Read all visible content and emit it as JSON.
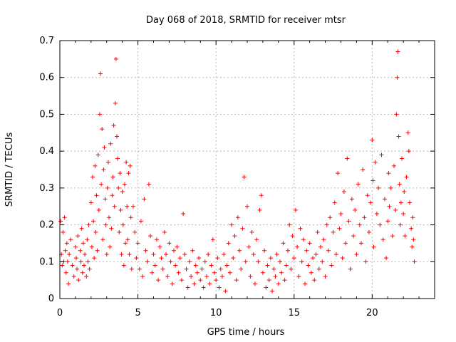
{
  "chart_data": {
    "type": "scatter",
    "title": "Day 068 of 2018, SRMTID for receiver mtsr",
    "xlabel": "GPS time / hours",
    "ylabel": "SRMTID / TECUs",
    "xlim": [
      0,
      24
    ],
    "ylim": [
      0,
      0.7
    ],
    "xticks": [
      0,
      5,
      10,
      15,
      20
    ],
    "yticks": [
      0,
      0.1,
      0.2,
      0.3,
      0.4,
      0.5,
      0.6,
      0.7
    ],
    "xtick_labels": [
      "0",
      "5",
      "10",
      "15",
      "20"
    ],
    "ytick_labels": [
      "0",
      "0.1",
      "0.2",
      "0.3",
      "0.4",
      "0.5",
      "0.6",
      "0.7"
    ],
    "grid": true,
    "marker": "+",
    "series": [
      {
        "name": "SRMTID",
        "color": "#ff0000",
        "points": [
          [
            0.05,
            0.21
          ],
          [
            0.1,
            0.12
          ],
          [
            0.15,
            0.09
          ],
          [
            0.2,
            0.18
          ],
          [
            0.25,
            0.1
          ],
          [
            0.3,
            0.22
          ],
          [
            0.35,
            0.13
          ],
          [
            0.4,
            0.07
          ],
          [
            0.45,
            0.15
          ],
          [
            0.5,
            0.1
          ],
          [
            0.55,
            0.04
          ],
          [
            0.6,
            0.12
          ],
          [
            0.7,
            0.16
          ],
          [
            0.8,
            0.09
          ],
          [
            0.9,
            0.06
          ],
          [
            1.0,
            0.14
          ],
          [
            1.05,
            0.11
          ],
          [
            1.1,
            0.08
          ],
          [
            1.15,
            0.17
          ],
          [
            1.2,
            0.05
          ],
          [
            1.3,
            0.13
          ],
          [
            1.35,
            0.1
          ],
          [
            1.4,
            0.19
          ],
          [
            1.45,
            0.07
          ],
          [
            1.5,
            0.15
          ],
          [
            1.55,
            0.09
          ],
          [
            1.6,
            0.12
          ],
          [
            1.7,
            0.06
          ],
          [
            1.75,
            0.16
          ],
          [
            1.8,
            0.1
          ],
          [
            1.85,
            0.2
          ],
          [
            1.9,
            0.08
          ],
          [
            2.0,
            0.26
          ],
          [
            2.05,
            0.14
          ],
          [
            2.1,
            0.33
          ],
          [
            2.15,
            0.21
          ],
          [
            2.2,
            0.11
          ],
          [
            2.25,
            0.36
          ],
          [
            2.3,
            0.18
          ],
          [
            2.35,
            0.28
          ],
          [
            2.4,
            0.13
          ],
          [
            2.45,
            0.39
          ],
          [
            2.5,
            0.24
          ],
          [
            2.55,
            0.5
          ],
          [
            2.6,
            0.61
          ],
          [
            2.65,
            0.31
          ],
          [
            2.7,
            0.46
          ],
          [
            2.75,
            0.16
          ],
          [
            2.8,
            0.35
          ],
          [
            2.85,
            0.41
          ],
          [
            2.9,
            0.27
          ],
          [
            2.95,
            0.2
          ],
          [
            3.0,
            0.12
          ],
          [
            3.05,
            0.3
          ],
          [
            3.1,
            0.37
          ],
          [
            3.15,
            0.22
          ],
          [
            3.2,
            0.14
          ],
          [
            3.25,
            0.42
          ],
          [
            3.3,
            0.19
          ],
          [
            3.35,
            0.28
          ],
          [
            3.4,
            0.33
          ],
          [
            3.45,
            0.47
          ],
          [
            3.5,
            0.25
          ],
          [
            3.55,
            0.53
          ],
          [
            3.6,
            0.65
          ],
          [
            3.65,
            0.44
          ],
          [
            3.7,
            0.38
          ],
          [
            3.75,
            0.3
          ],
          [
            3.8,
            0.18
          ],
          [
            3.85,
            0.34
          ],
          [
            3.9,
            0.24
          ],
          [
            3.95,
            0.12
          ],
          [
            4.0,
            0.29
          ],
          [
            4.05,
            0.2
          ],
          [
            4.1,
            0.09
          ],
          [
            4.15,
            0.31
          ],
          [
            4.2,
            0.15
          ],
          [
            4.25,
            0.37
          ],
          [
            4.3,
            0.25
          ],
          [
            4.35,
            0.16
          ],
          [
            4.4,
            0.34
          ],
          [
            4.45,
            0.12
          ],
          [
            4.5,
            0.36
          ],
          [
            4.55,
            0.22
          ],
          [
            4.6,
            0.08
          ],
          [
            4.7,
            0.25
          ],
          [
            4.8,
            0.18
          ],
          [
            4.9,
            0.11
          ],
          [
            5.0,
            0.15
          ],
          [
            5.1,
            0.08
          ],
          [
            5.2,
            0.21
          ],
          [
            5.3,
            0.06
          ],
          [
            5.4,
            0.27
          ],
          [
            5.5,
            0.13
          ],
          [
            5.6,
            0.1
          ],
          [
            5.7,
            0.31
          ],
          [
            5.8,
            0.17
          ],
          [
            5.9,
            0.07
          ],
          [
            6.0,
            0.12
          ],
          [
            6.1,
            0.09
          ],
          [
            6.2,
            0.16
          ],
          [
            6.3,
            0.05
          ],
          [
            6.4,
            0.14
          ],
          [
            6.5,
            0.11
          ],
          [
            6.6,
            0.08
          ],
          [
            6.7,
            0.18
          ],
          [
            6.8,
            0.12
          ],
          [
            6.9,
            0.06
          ],
          [
            7.0,
            0.15
          ],
          [
            7.1,
            0.1
          ],
          [
            7.2,
            0.04
          ],
          [
            7.3,
            0.13
          ],
          [
            7.4,
            0.09
          ],
          [
            7.5,
            0.14
          ],
          [
            7.6,
            0.07
          ],
          [
            7.7,
            0.11
          ],
          [
            7.8,
            0.05
          ],
          [
            7.9,
            0.23
          ],
          [
            8.0,
            0.12
          ],
          [
            8.1,
            0.08
          ],
          [
            8.2,
            0.03
          ],
          [
            8.3,
            0.1
          ],
          [
            8.4,
            0.06
          ],
          [
            8.5,
            0.13
          ],
          [
            8.6,
            0.04
          ],
          [
            8.7,
            0.09
          ],
          [
            8.8,
            0.07
          ],
          [
            8.9,
            0.11
          ],
          [
            9.0,
            0.05
          ],
          [
            9.1,
            0.08
          ],
          [
            9.2,
            0.03
          ],
          [
            9.3,
            0.1
          ],
          [
            9.4,
            0.06
          ],
          [
            9.5,
            0.12
          ],
          [
            9.6,
            0.04
          ],
          [
            9.7,
            0.09
          ],
          [
            9.8,
            0.16
          ],
          [
            9.9,
            0.07
          ],
          [
            10.0,
            0.05
          ],
          [
            10.1,
            0.11
          ],
          [
            10.2,
            0.03
          ],
          [
            10.3,
            0.08
          ],
          [
            10.4,
            0.06
          ],
          [
            10.5,
            0.12
          ],
          [
            10.6,
            0.02
          ],
          [
            10.7,
            0.09
          ],
          [
            10.8,
            0.15
          ],
          [
            10.9,
            0.07
          ],
          [
            11.0,
            0.2
          ],
          [
            11.1,
            0.11
          ],
          [
            11.2,
            0.17
          ],
          [
            11.3,
            0.05
          ],
          [
            11.4,
            0.22
          ],
          [
            11.5,
            0.13
          ],
          [
            11.6,
            0.08
          ],
          [
            11.7,
            0.19
          ],
          [
            11.8,
            0.33
          ],
          [
            11.9,
            0.1
          ],
          [
            12.0,
            0.25
          ],
          [
            12.1,
            0.14
          ],
          [
            12.2,
            0.06
          ],
          [
            12.3,
            0.18
          ],
          [
            12.4,
            0.12
          ],
          [
            12.5,
            0.04
          ],
          [
            12.6,
            0.16
          ],
          [
            12.7,
            0.1
          ],
          [
            12.8,
            0.24
          ],
          [
            12.9,
            0.28
          ],
          [
            13.0,
            0.07
          ],
          [
            13.1,
            0.13
          ],
          [
            13.2,
            0.03
          ],
          [
            13.3,
            0.09
          ],
          [
            13.4,
            0.05
          ],
          [
            13.5,
            0.11
          ],
          [
            13.6,
            0.02
          ],
          [
            13.7,
            0.08
          ],
          [
            13.8,
            0.06
          ],
          [
            13.9,
            0.12
          ],
          [
            14.0,
            0.04
          ],
          [
            14.1,
            0.1
          ],
          [
            14.2,
            0.07
          ],
          [
            14.3,
            0.15
          ],
          [
            14.4,
            0.05
          ],
          [
            14.5,
            0.09
          ],
          [
            14.6,
            0.13
          ],
          [
            14.7,
            0.2
          ],
          [
            14.8,
            0.08
          ],
          [
            14.9,
            0.17
          ],
          [
            15.0,
            0.11
          ],
          [
            15.1,
            0.24
          ],
          [
            15.2,
            0.14
          ],
          [
            15.3,
            0.06
          ],
          [
            15.4,
            0.19
          ],
          [
            15.5,
            0.1
          ],
          [
            15.6,
            0.16
          ],
          [
            15.7,
            0.04
          ],
          [
            15.8,
            0.13
          ],
          [
            15.9,
            0.09
          ],
          [
            16.0,
            0.15
          ],
          [
            16.1,
            0.07
          ],
          [
            16.2,
            0.11
          ],
          [
            16.3,
            0.05
          ],
          [
            16.4,
            0.12
          ],
          [
            16.5,
            0.18
          ],
          [
            16.6,
            0.08
          ],
          [
            16.7,
            0.14
          ],
          [
            16.8,
            0.1
          ],
          [
            16.9,
            0.16
          ],
          [
            17.0,
            0.06
          ],
          [
            17.1,
            0.2
          ],
          [
            17.2,
            0.13
          ],
          [
            17.3,
            0.22
          ],
          [
            17.4,
            0.09
          ],
          [
            17.5,
            0.18
          ],
          [
            17.6,
            0.26
          ],
          [
            17.7,
            0.12
          ],
          [
            17.8,
            0.34
          ],
          [
            17.9,
            0.19
          ],
          [
            18.0,
            0.23
          ],
          [
            18.1,
            0.11
          ],
          [
            18.2,
            0.29
          ],
          [
            18.3,
            0.15
          ],
          [
            18.4,
            0.38
          ],
          [
            18.5,
            0.21
          ],
          [
            18.6,
            0.08
          ],
          [
            18.7,
            0.27
          ],
          [
            18.8,
            0.17
          ],
          [
            18.9,
            0.24
          ],
          [
            19.0,
            0.12
          ],
          [
            19.1,
            0.31
          ],
          [
            19.2,
            0.2
          ],
          [
            19.3,
            0.15
          ],
          [
            19.4,
            0.35
          ],
          [
            19.5,
            0.22
          ],
          [
            19.6,
            0.1
          ],
          [
            19.7,
            0.28
          ],
          [
            19.8,
            0.18
          ],
          [
            19.9,
            0.26
          ],
          [
            20.0,
            0.43
          ],
          [
            20.05,
            0.32
          ],
          [
            20.1,
            0.14
          ],
          [
            20.2,
            0.37
          ],
          [
            20.3,
            0.23
          ],
          [
            20.4,
            0.3
          ],
          [
            20.5,
            0.2
          ],
          [
            20.6,
            0.39
          ],
          [
            20.7,
            0.16
          ],
          [
            20.8,
            0.27
          ],
          [
            20.9,
            0.11
          ],
          [
            21.0,
            0.21
          ],
          [
            21.05,
            0.34
          ],
          [
            21.1,
            0.25
          ],
          [
            21.2,
            0.3
          ],
          [
            21.3,
            0.17
          ],
          [
            21.4,
            0.36
          ],
          [
            21.5,
            0.24
          ],
          [
            21.55,
            0.5
          ],
          [
            21.6,
            0.6
          ],
          [
            21.65,
            0.67
          ],
          [
            21.7,
            0.44
          ],
          [
            21.75,
            0.31
          ],
          [
            21.8,
            0.2
          ],
          [
            21.85,
            0.26
          ],
          [
            21.9,
            0.38
          ],
          [
            22.0,
            0.23
          ],
          [
            22.05,
            0.29
          ],
          [
            22.1,
            0.17
          ],
          [
            22.2,
            0.33
          ],
          [
            22.3,
            0.45
          ],
          [
            22.35,
            0.4
          ],
          [
            22.4,
            0.26
          ],
          [
            22.5,
            0.19
          ],
          [
            22.55,
            0.14
          ],
          [
            22.6,
            0.22
          ],
          [
            22.65,
            0.16
          ],
          [
            22.7,
            0.1
          ]
        ]
      }
    ]
  }
}
